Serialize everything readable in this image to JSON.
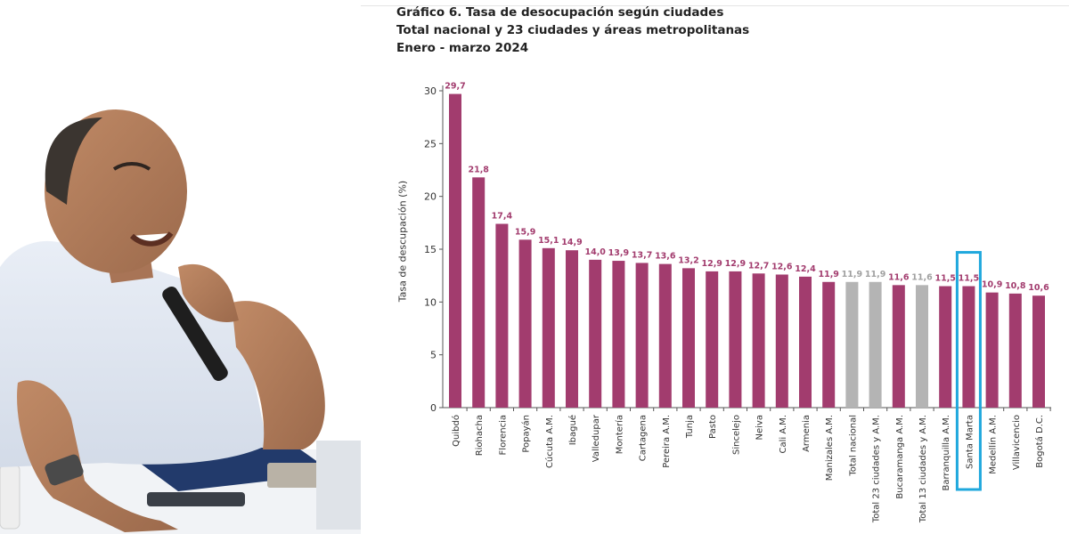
{
  "chart_data": {
    "type": "bar",
    "title": "Gráfico 6. Tasa de desocupación según ciudades",
    "subtitle": "Total nacional y 23 ciudades y áreas metropolitanas",
    "period": "Enero - marzo 2024",
    "ylabel": "Tasa de descupación (%)",
    "xlabel": "",
    "ylim": [
      0,
      30
    ],
    "yticks": [
      "0",
      "5",
      "10",
      "15",
      "20",
      "25",
      "30"
    ],
    "grid": false,
    "categories": [
      "Quibdó",
      "Riohacha",
      "Florencia",
      "Popayán",
      "Cúcuta A.M.",
      "Ibagué",
      "Valledupar",
      "Montería",
      "Cartagena",
      "Pereira A.M.",
      "Tunja",
      "Pasto",
      "Sincelejo",
      "Neiva",
      "Cali A.M.",
      "Armenia",
      "Manizales A.M.",
      "Total nacional",
      "Total 23 ciudades y A.M.",
      "Bucaramanga A.M.",
      "Total 13 ciudades y A.M.",
      "Barranquilla A.M.",
      "Santa Marta",
      "Medellín A.M.",
      "Villavicencio",
      "Bogotá D.C."
    ],
    "values": [
      29.7,
      21.8,
      17.4,
      15.9,
      15.1,
      14.9,
      14.0,
      13.9,
      13.7,
      13.6,
      13.2,
      12.9,
      12.9,
      12.7,
      12.6,
      12.4,
      11.9,
      11.9,
      11.9,
      11.6,
      11.6,
      11.5,
      11.5,
      10.9,
      10.8,
      10.6
    ],
    "value_labels": [
      "29,7",
      "21,8",
      "17,4",
      "15,9",
      "15,1",
      "14,9",
      "14,0",
      "13,9",
      "13,7",
      "13,6",
      "13,2",
      "12,9",
      "12,9",
      "12,7",
      "12,6",
      "12,4",
      "11,9",
      "11,9",
      "11,9",
      "11,6",
      "11,6",
      "11,5",
      "11,5",
      "10,9",
      "10,8",
      "10,6"
    ],
    "bar_kind": [
      "city",
      "city",
      "city",
      "city",
      "city",
      "city",
      "city",
      "city",
      "city",
      "city",
      "city",
      "city",
      "city",
      "city",
      "city",
      "city",
      "city",
      "total",
      "total",
      "city",
      "total",
      "city",
      "city",
      "city",
      "city",
      "city"
    ],
    "highlighted_category": "Santa Marta",
    "colors": {
      "city_bar": "#a23c6e",
      "total_bar": "#b4b4b4",
      "city_label": "#a23c6e",
      "total_label": "#a0a0a0",
      "highlight_box": "#1fa8dd",
      "axis": "#555555"
    }
  }
}
